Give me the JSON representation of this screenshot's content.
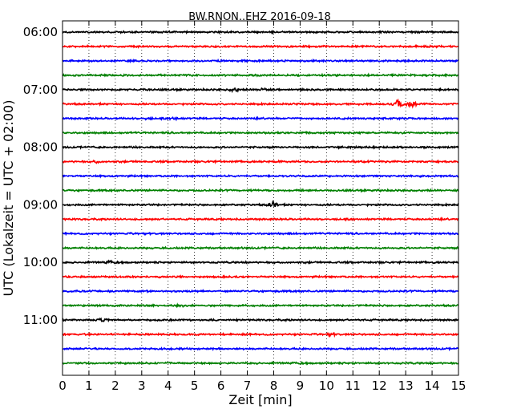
{
  "chart_data": {
    "type": "line",
    "title": "BW.RNON..EHZ 2016-09-18",
    "xlabel": "Zeit  [min]",
    "ylabel": "UTC (Lokalzeit = UTC + 02:00)",
    "xlim": [
      0,
      15
    ],
    "x_ticks": [
      "0",
      "1",
      "2",
      "3",
      "4",
      "5",
      "6",
      "7",
      "8",
      "9",
      "10",
      "11",
      "12",
      "13",
      "14",
      "15"
    ],
    "y_ticks": [
      {
        "label": "06:00",
        "trace": 0
      },
      {
        "label": "07:00",
        "trace": 4
      },
      {
        "label": "08:00",
        "trace": 8
      },
      {
        "label": "09:00",
        "trace": 12
      },
      {
        "label": "10:00",
        "trace": 16
      },
      {
        "label": "11:00",
        "trace": 20
      }
    ],
    "grid": "vertical-dotted",
    "series": [
      {
        "start": "06:00",
        "color": "#000000"
      },
      {
        "start": "06:15",
        "color": "#ff0000"
      },
      {
        "start": "06:30",
        "color": "#0000ff"
      },
      {
        "start": "06:45",
        "color": "#008000"
      },
      {
        "start": "07:00",
        "color": "#000000",
        "events": [
          {
            "t": 6.5,
            "amp": 3.5
          },
          {
            "t": 7.6,
            "amp": 3
          }
        ]
      },
      {
        "start": "07:15",
        "color": "#ff0000",
        "events": [
          {
            "t": 12.7,
            "amp": 7
          },
          {
            "t": 13.2,
            "amp": 5
          }
        ]
      },
      {
        "start": "07:30",
        "color": "#0000ff",
        "events": [
          {
            "t": 3.2,
            "amp": 2
          },
          {
            "t": 4.3,
            "amp": 2
          }
        ]
      },
      {
        "start": "07:45",
        "color": "#008000"
      },
      {
        "start": "08:00",
        "color": "#000000"
      },
      {
        "start": "08:15",
        "color": "#ff0000",
        "events": [
          {
            "t": 1.3,
            "amp": 2.5
          }
        ]
      },
      {
        "start": "08:30",
        "color": "#0000ff"
      },
      {
        "start": "08:45",
        "color": "#008000"
      },
      {
        "start": "09:00",
        "color": "#000000",
        "events": [
          {
            "t": 7.95,
            "amp": 6
          }
        ]
      },
      {
        "start": "09:15",
        "color": "#ff0000"
      },
      {
        "start": "09:30",
        "color": "#0000ff"
      },
      {
        "start": "09:45",
        "color": "#008000"
      },
      {
        "start": "10:00",
        "color": "#000000",
        "events": [
          {
            "t": 1.8,
            "amp": 2
          }
        ]
      },
      {
        "start": "10:15",
        "color": "#ff0000"
      },
      {
        "start": "10:30",
        "color": "#0000ff"
      },
      {
        "start": "10:45",
        "color": "#008000",
        "events": [
          {
            "t": 4.5,
            "amp": 2
          }
        ]
      },
      {
        "start": "11:00",
        "color": "#000000",
        "events": [
          {
            "t": 1.5,
            "amp": 3
          }
        ]
      },
      {
        "start": "11:15",
        "color": "#ff0000",
        "events": [
          {
            "t": 10.2,
            "amp": 2
          }
        ]
      },
      {
        "start": "11:30",
        "color": "#0000ff"
      },
      {
        "start": "11:45",
        "color": "#008000"
      }
    ]
  }
}
